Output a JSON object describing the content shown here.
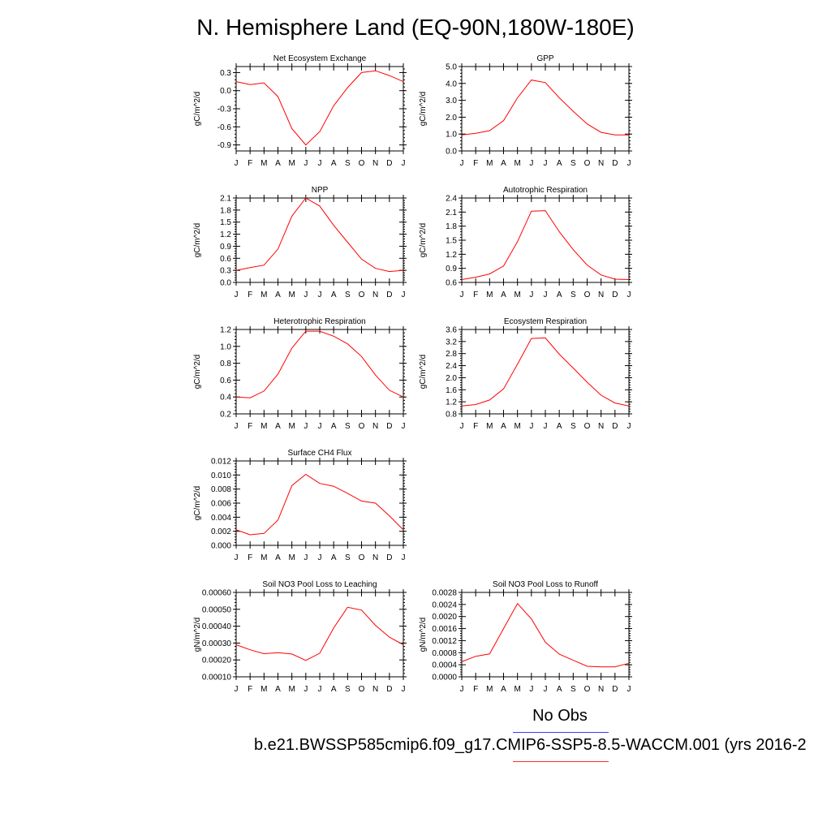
{
  "title": "N. Hemisphere Land (EQ-90N,180W-180E)",
  "legend": {
    "obs_label": "No Obs",
    "case_label": "b.e21.BWSSP585cmip6.f09_g17.CMIP6-SSP5-8.5-WACCM.001 (yrs 2016-2",
    "obs_color": "#3a3aff",
    "case_color": "#ff3030"
  },
  "colors": {
    "series": "#ff0000",
    "axis": "#000000"
  },
  "chart_data": [
    {
      "type": "line",
      "title": "Net Ecosystem Exchange",
      "ylabel": "gC/m^2/d",
      "x": [
        "J",
        "F",
        "M",
        "A",
        "M",
        "J",
        "J",
        "A",
        "S",
        "O",
        "N",
        "D",
        "J"
      ],
      "ylim": [
        -1.0,
        0.4
      ],
      "yticks": [
        0.3,
        0.0,
        -0.3,
        -0.6,
        -0.9
      ],
      "ytick_labels": [
        "0.3",
        "0.0",
        "-0.3",
        "-0.6",
        "-0.9"
      ],
      "values": [
        0.15,
        0.1,
        0.13,
        -0.1,
        -0.63,
        -0.9,
        -0.68,
        -0.25,
        0.05,
        0.3,
        0.33,
        0.25,
        0.15
      ]
    },
    {
      "type": "line",
      "title": "GPP",
      "ylabel": "gC/m^2/d",
      "x": [
        "J",
        "F",
        "M",
        "A",
        "M",
        "J",
        "J",
        "A",
        "S",
        "O",
        "N",
        "D",
        "J"
      ],
      "ylim": [
        0.0,
        5.0
      ],
      "yticks": [
        5.0,
        4.0,
        3.0,
        2.0,
        1.0,
        0.0
      ],
      "ytick_labels": [
        "5.0",
        "4.0",
        "3.0",
        "2.0",
        "1.0",
        "0.0"
      ],
      "values": [
        0.95,
        1.05,
        1.2,
        1.8,
        3.15,
        4.2,
        4.05,
        3.15,
        2.35,
        1.6,
        1.1,
        0.95,
        0.95
      ]
    },
    {
      "type": "line",
      "title": "NPP",
      "ylabel": "gC/m^2/d",
      "x": [
        "J",
        "F",
        "M",
        "A",
        "M",
        "J",
        "J",
        "A",
        "S",
        "O",
        "N",
        "D",
        "J"
      ],
      "ylim": [
        0.0,
        2.1
      ],
      "yticks": [
        2.1,
        1.8,
        1.5,
        1.2,
        0.9,
        0.6,
        0.3,
        0.0
      ],
      "ytick_labels": [
        "2.1",
        "1.8",
        "1.5",
        "1.2",
        "0.9",
        "0.6",
        "0.3",
        "0.0"
      ],
      "values": [
        0.3,
        0.37,
        0.43,
        0.83,
        1.65,
        2.1,
        1.9,
        1.42,
        1.0,
        0.58,
        0.35,
        0.27,
        0.3
      ]
    },
    {
      "type": "line",
      "title": "Autotrophic Respiration",
      "ylabel": "gC/m^2/d",
      "x": [
        "J",
        "F",
        "M",
        "A",
        "M",
        "J",
        "J",
        "A",
        "S",
        "O",
        "N",
        "D",
        "J"
      ],
      "ylim": [
        0.6,
        2.4
      ],
      "yticks": [
        2.4,
        2.1,
        1.8,
        1.5,
        1.2,
        0.9,
        0.6
      ],
      "ytick_labels": [
        "2.4",
        "2.1",
        "1.8",
        "1.5",
        "1.2",
        "0.9",
        "0.6"
      ],
      "values": [
        0.66,
        0.71,
        0.78,
        0.95,
        1.47,
        2.12,
        2.13,
        1.68,
        1.3,
        0.97,
        0.76,
        0.67,
        0.66
      ]
    },
    {
      "type": "line",
      "title": "Heterotrophic Respiration",
      "ylabel": "gC/m^2/d",
      "x": [
        "J",
        "F",
        "M",
        "A",
        "M",
        "J",
        "J",
        "A",
        "S",
        "O",
        "N",
        "D",
        "J"
      ],
      "ylim": [
        0.2,
        1.2
      ],
      "yticks": [
        1.2,
        1.0,
        0.8,
        0.6,
        0.4,
        0.2
      ],
      "ytick_labels": [
        "1.2",
        "1.0",
        "0.8",
        "0.6",
        "0.4",
        "0.2"
      ],
      "values": [
        0.4,
        0.39,
        0.47,
        0.67,
        0.98,
        1.18,
        1.18,
        1.12,
        1.03,
        0.88,
        0.66,
        0.48,
        0.4
      ]
    },
    {
      "type": "line",
      "title": "Ecosystem Respiration",
      "ylabel": "gC/m^2/d",
      "x": [
        "J",
        "F",
        "M",
        "A",
        "M",
        "J",
        "J",
        "A",
        "S",
        "O",
        "N",
        "D",
        "J"
      ],
      "ylim": [
        0.8,
        3.6
      ],
      "yticks": [
        3.6,
        3.2,
        2.8,
        2.4,
        2.0,
        1.6,
        1.2,
        0.8
      ],
      "ytick_labels": [
        "3.6",
        "3.2",
        "2.8",
        "2.4",
        "2.0",
        "1.6",
        "1.2",
        "0.8"
      ],
      "values": [
        1.06,
        1.11,
        1.26,
        1.63,
        2.45,
        3.3,
        3.32,
        2.78,
        2.32,
        1.85,
        1.42,
        1.16,
        1.06
      ]
    },
    {
      "type": "line",
      "title": "Surface CH4 Flux",
      "ylabel": "gC/m^2/d",
      "x": [
        "J",
        "F",
        "M",
        "A",
        "M",
        "J",
        "J",
        "A",
        "S",
        "O",
        "N",
        "D",
        "J"
      ],
      "ylim": [
        0.0,
        0.012
      ],
      "yticks": [
        0.012,
        0.01,
        0.008,
        0.006,
        0.004,
        0.002,
        0.0
      ],
      "ytick_labels": [
        "0.012",
        "0.010",
        "0.008",
        "0.006",
        "0.004",
        "0.002",
        "0.000"
      ],
      "values": [
        0.0022,
        0.0015,
        0.0017,
        0.0036,
        0.0085,
        0.0101,
        0.0088,
        0.0084,
        0.0074,
        0.0063,
        0.006,
        0.0042,
        0.0022
      ]
    },
    {
      "type": "line",
      "title": "Soil NO3 Pool Loss to Leaching",
      "ylabel": "gN/m^2/d",
      "x": [
        "J",
        "F",
        "M",
        "A",
        "M",
        "J",
        "J",
        "A",
        "S",
        "O",
        "N",
        "D",
        "J"
      ],
      "ylim": [
        0.0001,
        0.0006
      ],
      "yticks": [
        0.0006,
        0.0005,
        0.0004,
        0.0003,
        0.0002,
        0.0001
      ],
      "ytick_labels": [
        "0.00060",
        "0.00050",
        "0.00040",
        "0.00030",
        "0.00020",
        "0.00010"
      ],
      "values": [
        0.00029,
        0.00026,
        0.000237,
        0.000243,
        0.000235,
        0.000197,
        0.00024,
        0.00039,
        0.000512,
        0.000495,
        0.000405,
        0.000335,
        0.00029
      ]
    },
    {
      "type": "line",
      "title": "Soil NO3 Pool Loss to Runoff",
      "ylabel": "gN/m^2/d",
      "x": [
        "J",
        "F",
        "M",
        "A",
        "M",
        "J",
        "J",
        "A",
        "S",
        "O",
        "N",
        "D",
        "J"
      ],
      "ylim": [
        0.0,
        0.0028
      ],
      "yticks": [
        0.0028,
        0.0024,
        0.002,
        0.0016,
        0.0012,
        0.0008,
        0.0004,
        0.0
      ],
      "ytick_labels": [
        "0.0028",
        "0.0024",
        "0.0020",
        "0.0016",
        "0.0012",
        "0.0008",
        "0.0004",
        "0.0000"
      ],
      "values": [
        0.0005,
        0.00068,
        0.00076,
        0.0016,
        0.00243,
        0.00192,
        0.00115,
        0.00075,
        0.00055,
        0.00035,
        0.00033,
        0.00033,
        0.00045
      ]
    }
  ]
}
